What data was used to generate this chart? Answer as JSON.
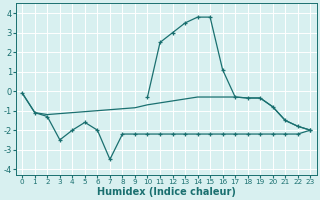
{
  "x": [
    0,
    1,
    2,
    3,
    4,
    5,
    6,
    7,
    8,
    9,
    10,
    11,
    12,
    13,
    14,
    15,
    16,
    17,
    18,
    19,
    20,
    21,
    22,
    23
  ],
  "line_peak": [
    null,
    null,
    null,
    null,
    null,
    null,
    null,
    null,
    null,
    null,
    -0.3,
    2.5,
    3.0,
    3.5,
    3.8,
    3.8,
    1.1,
    -0.3,
    -0.35,
    -0.35,
    -0.8,
    -1.5,
    -1.8,
    -2.0
  ],
  "line_flat": [
    -0.1,
    -1.1,
    -1.2,
    -1.15,
    -1.1,
    -1.05,
    -1.0,
    -0.95,
    -0.9,
    -0.85,
    -0.7,
    -0.6,
    -0.5,
    -0.4,
    -0.3,
    -0.3,
    -0.3,
    -0.3,
    -0.35,
    -0.35,
    -0.8,
    -1.5,
    -1.8,
    -2.0
  ],
  "line_zigzag": [
    -0.1,
    -1.1,
    -1.3,
    -2.5,
    -2.0,
    -1.6,
    -2.0,
    -3.5,
    -2.2,
    -2.2,
    -2.2,
    -2.2,
    -2.2,
    -2.2,
    -2.2,
    -2.2,
    -2.2,
    -2.2,
    -2.2,
    -2.2,
    -2.2,
    -2.2,
    -2.2,
    -2.0
  ],
  "line_color": "#1a7070",
  "bg_color": "#d8f0f0",
  "grid_color": "#ffffff",
  "xlabel": "Humidex (Indice chaleur)",
  "xlim": [
    -0.5,
    23.5
  ],
  "ylim": [
    -4.3,
    4.5
  ],
  "yticks": [
    -4,
    -3,
    -2,
    -1,
    0,
    1,
    2,
    3,
    4
  ],
  "xticks": [
    0,
    1,
    2,
    3,
    4,
    5,
    6,
    7,
    8,
    9,
    10,
    11,
    12,
    13,
    14,
    15,
    16,
    17,
    18,
    19,
    20,
    21,
    22,
    23
  ]
}
